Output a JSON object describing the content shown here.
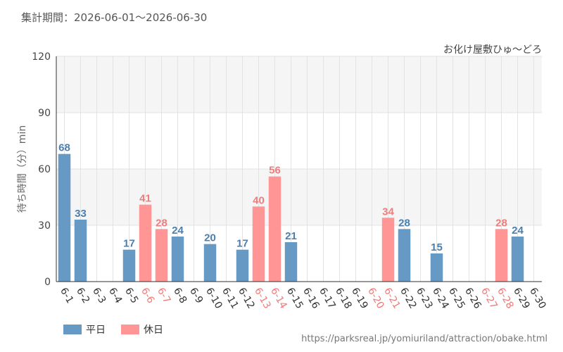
{
  "header": {
    "period": "集計期間：2026-06-01～2026-06-30"
  },
  "footer": {
    "source": "https://parksreal.jp/yomiuriland/attraction/obake.html"
  },
  "colors": {
    "weekday": "#6699c4",
    "holiday": "#ff9595",
    "weekday_label": "#4a7fae",
    "holiday_label": "#ee7d7d",
    "holiday_tick": "#f07878",
    "band": "#f5f5f5",
    "grid": "#e3e3e3"
  },
  "legend": [
    {
      "name": "平日",
      "color_key": "weekday"
    },
    {
      "name": "休日",
      "color_key": "holiday"
    }
  ],
  "chart_data": {
    "type": "bar",
    "title": "お化け屋敷ひゅ～どろ",
    "ylabel": "待ち時間（分）min",
    "ylim": [
      0,
      120
    ],
    "yticks": [
      0,
      30,
      60,
      90,
      120
    ],
    "categories": [
      "6-1",
      "6-2",
      "6-3",
      "6-4",
      "6-5",
      "6-6",
      "6-7",
      "6-8",
      "6-9",
      "6-10",
      "6-11",
      "6-12",
      "6-13",
      "6-14",
      "6-15",
      "6-16",
      "6-17",
      "6-18",
      "6-19",
      "6-20",
      "6-21",
      "6-22",
      "6-23",
      "6-24",
      "6-25",
      "6-26",
      "6-27",
      "6-28",
      "6-29",
      "6-30"
    ],
    "holiday": [
      false,
      false,
      false,
      false,
      false,
      true,
      true,
      false,
      false,
      false,
      false,
      false,
      true,
      true,
      false,
      false,
      false,
      false,
      false,
      true,
      true,
      false,
      false,
      false,
      false,
      false,
      true,
      true,
      false,
      false
    ],
    "values": [
      68,
      33,
      null,
      null,
      17,
      41,
      28,
      24,
      null,
      20,
      null,
      17,
      40,
      56,
      21,
      null,
      null,
      null,
      null,
      null,
      34,
      28,
      null,
      15,
      null,
      null,
      null,
      28,
      24,
      null
    ]
  }
}
